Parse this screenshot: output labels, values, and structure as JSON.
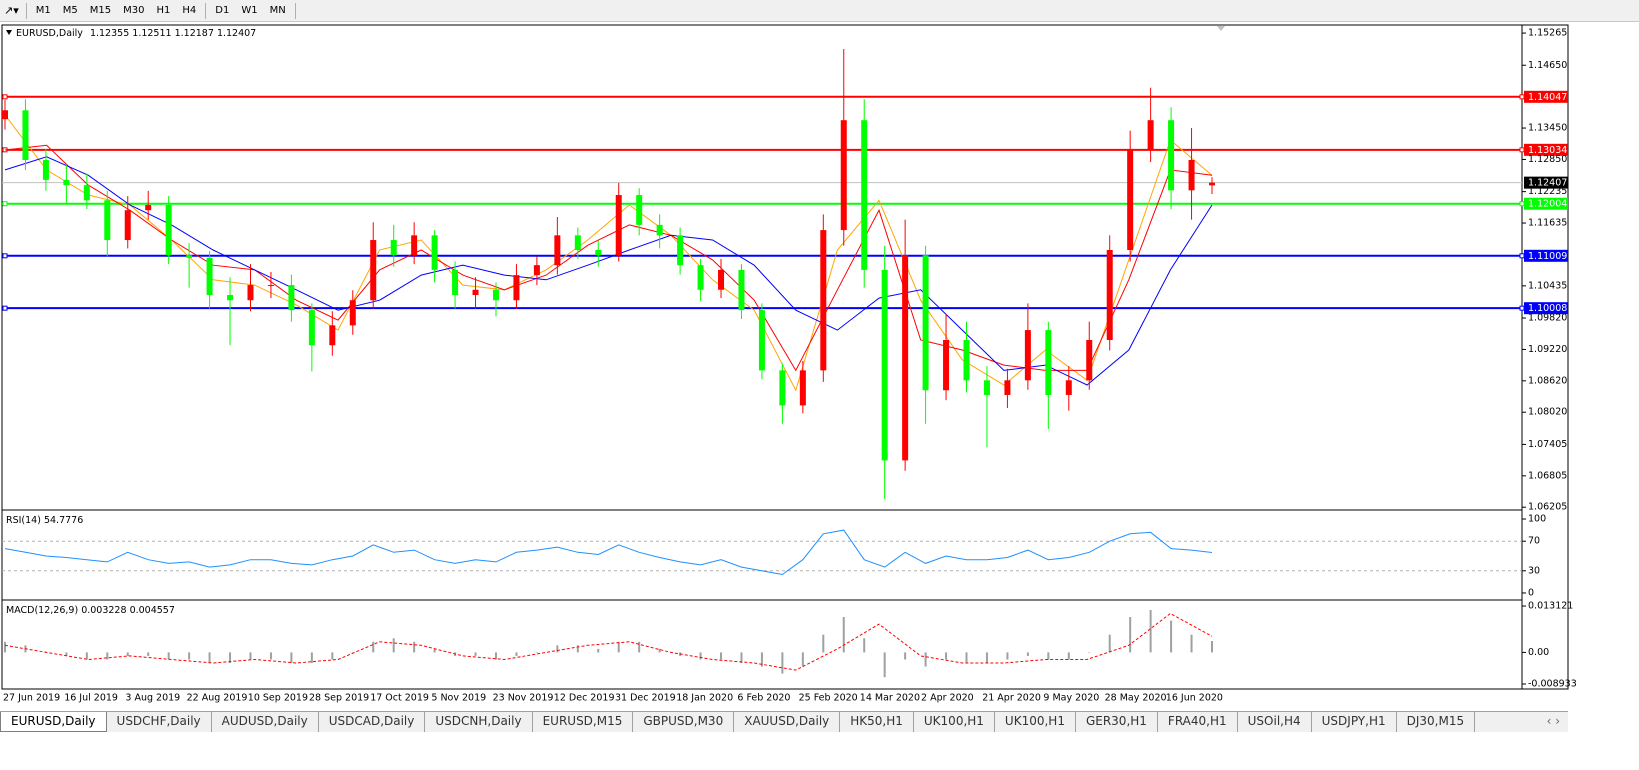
{
  "toolbar": {
    "timeframes": [
      "M1",
      "M5",
      "M15",
      "M30",
      "H1",
      "H4",
      "D1",
      "W1",
      "MN"
    ]
  },
  "chart_data": [
    {
      "type": "candlestick",
      "title": "EURUSD,Daily",
      "up_color": "#ff0000",
      "down_color": "#00ff00",
      "open": [
        1.1362,
        1.1379,
        1.1284,
        1.1246,
        1.1236,
        1.1207,
        1.1131,
        1.1188,
        1.1198,
        1.1102,
        1.1097,
        1.1026,
        1.1016,
        1.1045,
        1.1045,
        1.0997,
        1.093,
        1.0968,
        1.1016,
        1.1131,
        1.1102,
        1.114,
        1.1074,
        1.1026,
        1.1036,
        1.1016,
        1.1064,
        1.1083,
        1.114,
        1.1112,
        1.1102,
        1.1217,
        1.116,
        1.114,
        1.1083,
        1.1036,
        1.1074,
        1.0997,
        1.0882,
        1.0815,
        1.0882,
        1.115,
        1.136,
        1.1074,
        1.071,
        1.1102,
        1.0844,
        1.094,
        1.0863,
        1.0835,
        1.0863,
        1.0959,
        1.0835,
        1.0863,
        1.094,
        1.1112,
        1.1303,
        1.136,
        1.1226,
        1.12355
      ],
      "high": [
        1.1399,
        1.14,
        1.1305,
        1.1275,
        1.1258,
        1.1225,
        1.1215,
        1.1225,
        1.1215,
        1.1125,
        1.111,
        1.106,
        1.1085,
        1.107,
        1.1065,
        1.101,
        1.0995,
        1.1035,
        1.1165,
        1.116,
        1.1165,
        1.115,
        1.109,
        1.106,
        1.105,
        1.1085,
        1.11,
        1.1175,
        1.1155,
        1.113,
        1.124,
        1.123,
        1.118,
        1.1155,
        1.1095,
        1.1095,
        1.1085,
        1.101,
        1.0895,
        1.09,
        1.118,
        1.1496,
        1.14,
        1.112,
        1.117,
        1.112,
        1.099,
        1.0975,
        1.089,
        1.0885,
        1.101,
        1.0975,
        1.089,
        1.0975,
        1.114,
        1.134,
        1.1422,
        1.1385,
        1.1345,
        1.12511
      ],
      "low": [
        1.1342,
        1.1265,
        1.1225,
        1.12,
        1.119,
        1.11,
        1.1115,
        1.117,
        1.1085,
        1.104,
        1.1,
        1.093,
        1.0995,
        1.102,
        1.0975,
        1.088,
        1.091,
        1.095,
        1.1,
        1.108,
        1.1085,
        1.105,
        1.1,
        1.1,
        1.0985,
        1.1,
        1.1045,
        1.1065,
        1.1095,
        1.108,
        1.109,
        1.114,
        1.1115,
        1.1065,
        1.1015,
        1.102,
        1.098,
        1.0865,
        1.078,
        1.08,
        1.086,
        1.112,
        1.104,
        1.0636,
        1.069,
        1.078,
        1.0825,
        1.084,
        1.0735,
        1.081,
        1.0845,
        1.077,
        1.0805,
        1.0845,
        1.092,
        1.109,
        1.128,
        1.119,
        1.117,
        1.12187
      ],
      "close": [
        1.1379,
        1.1284,
        1.1246,
        1.1236,
        1.1207,
        1.1131,
        1.1188,
        1.1198,
        1.1102,
        1.1097,
        1.1026,
        1.1016,
        1.1045,
        1.1045,
        1.0997,
        1.093,
        1.0968,
        1.1016,
        1.1131,
        1.1102,
        1.114,
        1.1074,
        1.1026,
        1.1036,
        1.1016,
        1.1064,
        1.1083,
        1.114,
        1.1112,
        1.1102,
        1.1217,
        1.116,
        1.114,
        1.1083,
        1.1036,
        1.1074,
        1.0997,
        1.0882,
        1.0815,
        1.0882,
        1.115,
        1.136,
        1.1074,
        1.071,
        1.1102,
        1.0844,
        1.094,
        1.0863,
        1.0835,
        1.0863,
        1.0959,
        1.0835,
        1.0863,
        1.094,
        1.1112,
        1.1303,
        1.136,
        1.1226,
        1.1284,
        1.12407
      ],
      "moving_averages": [
        {
          "color": "#ffa500",
          "values": [
            1.137,
            1.1265,
            1.1217,
            1.1198,
            1.1131,
            1.1055,
            1.1045,
            1.1007,
            1.0959,
            1.1112,
            1.1131,
            1.1045,
            1.1036,
            1.1074,
            1.1131,
            1.1198,
            1.114,
            1.1055,
            1.0997,
            1.0844,
            1.1112,
            1.1207,
            1.1016,
            1.0902,
            1.0854,
            1.0921,
            1.0863,
            1.1093,
            1.1322,
            1.1255
          ]
        },
        {
          "color": "#ff0000",
          "values": [
            1.1303,
            1.1312,
            1.1236,
            1.1188,
            1.1131,
            1.1083,
            1.1074,
            1.1016,
            1.0978,
            1.1074,
            1.1112,
            1.1064,
            1.1036,
            1.1064,
            1.1121,
            1.116,
            1.114,
            1.1093,
            1.1016,
            1.0882,
            1.1036,
            1.1188,
            1.094,
            1.0921,
            1.0892,
            1.0882,
            1.0882,
            1.1055,
            1.1265,
            1.1255
          ]
        },
        {
          "color": "#0000ff",
          "values": [
            1.1265,
            1.129,
            1.1255,
            1.1198,
            1.116,
            1.1112,
            1.1074,
            1.1036,
            1.0997,
            1.1016,
            1.1064,
            1.1083,
            1.1064,
            1.1055,
            1.1083,
            1.1112,
            1.114,
            1.1131,
            1.1083,
            1.0997,
            1.0959,
            1.102,
            1.1036,
            1.0959,
            1.0882,
            1.0892,
            1.0854,
            1.0921,
            1.1074,
            1.1198
          ]
        }
      ],
      "levels": [
        {
          "value": 1.14047,
          "color": "#ff0000"
        },
        {
          "value": 1.13034,
          "color": "#ff0000"
        },
        {
          "value": 1.12004,
          "color": "#00ff00"
        },
        {
          "value": 1.11009,
          "color": "#0000ff"
        },
        {
          "value": 1.10008,
          "color": "#0000ff"
        }
      ],
      "ylim": [
        1.0619,
        1.154
      ],
      "yticks": [
        1.15265,
        {
          "value": 1.1465,
          "label": "1.14650"
        },
        {
          "value": 1.1345,
          "label": "1.13450"
        },
        {
          "value": 1.1285,
          "label": "1.12850"
        },
        1.12235,
        1.11635,
        {
          "value": 1.10435,
          "label": "1.10435"
        },
        {
          "value": 1.0982,
          "label": "1.09820"
        },
        {
          "value": 1.0922,
          "label": "1.09220"
        },
        {
          "value": 1.0862,
          "label": "1.08620"
        },
        {
          "value": 1.0802,
          "label": "1.08020"
        },
        1.07405,
        1.06805,
        1.06205
      ],
      "x_labels": [
        "27 Jun 2019",
        "16 Jul 2019",
        "3 Aug 2019",
        "22 Aug 2019",
        "10 Sep 2019",
        "28 Sep 2019",
        "17 Oct 2019",
        "5 Nov 2019",
        "23 Nov 2019",
        "12 Dec 2019",
        "31 Dec 2019",
        "18 Jan 2020",
        "6 Feb 2020",
        "25 Feb 2020",
        "14 Mar 2020",
        "2 Apr 2020",
        "21 Apr 2020",
        "9 May 2020",
        "28 May 2020",
        "16 Jun 2020"
      ]
    },
    {
      "type": "line",
      "title": "RSI(14)",
      "color": "#1e90ff",
      "values": [
        60,
        55,
        50,
        48,
        45,
        42,
        55,
        45,
        40,
        42,
        35,
        38,
        45,
        45,
        40,
        38,
        45,
        50,
        65,
        55,
        58,
        45,
        40,
        45,
        42,
        55,
        58,
        62,
        55,
        52,
        65,
        55,
        48,
        42,
        38,
        45,
        35,
        30,
        25,
        45,
        80,
        85,
        45,
        35,
        55,
        40,
        50,
        45,
        45,
        48,
        58,
        45,
        48,
        55,
        70,
        80,
        82,
        60,
        58,
        54.7776
      ],
      "levels": [
        70,
        30
      ],
      "ylim": [
        -6.8,
        109.5
      ],
      "yticks": [
        100,
        70,
        30,
        0
      ]
    },
    {
      "type": "macd",
      "title": "MACD(12,26,9)",
      "color": "#a0a0a0",
      "signal_color": "#ff0000",
      "values": [
        0.003,
        0.002,
        0,
        -0.001,
        -0.002,
        -0.002,
        -0.001,
        -0.001,
        -0.002,
        -0.002,
        -0.003,
        -0.003,
        -0.002,
        -0.002,
        -0.003,
        -0.003,
        -0.002,
        0,
        0.003,
        0.004,
        0.003,
        0.001,
        -0.001,
        -0.001,
        -0.002,
        -0.001,
        0,
        0.002,
        0.002,
        0.001,
        0.003,
        0.003,
        0.001,
        -0.001,
        -0.002,
        -0.002,
        -0.003,
        -0.004,
        -0.006,
        -0.004,
        0.005,
        0.01,
        0.004,
        -0.007,
        -0.002,
        -0.004,
        -0.002,
        -0.003,
        -0.003,
        -0.002,
        -0.001,
        -0.002,
        -0.002,
        0,
        0.005,
        0.01,
        0.012,
        0.009,
        0.005,
        0.003228
      ],
      "signal": [
        0.002,
        0,
        -0.002,
        -0.001,
        -0.002,
        -0.003,
        -0.002,
        -0.003,
        -0.002,
        0.003,
        0.002,
        -0.001,
        -0.002,
        0,
        0.002,
        0.003,
        0,
        -0.002,
        -0.003,
        -0.005,
        0.001,
        0.008,
        -0.001,
        -0.003,
        -0.003,
        -0.002,
        -0.002,
        0.002,
        0.011,
        0.004557
      ],
      "ylim": [
        -0.01035,
        0.01454
      ],
      "yticks": [
        0.013121,
        {
          "value": 0,
          "label": "0.00"
        },
        -0.008933
      ]
    }
  ],
  "tabs": [
    "EURUSD,Daily",
    "USDCHF,Daily",
    "AUDUSD,Daily",
    "USDCAD,Daily",
    "USDCNH,Daily",
    "EURUSD,M15",
    "GBPUSD,M30",
    "XAUUSD,Daily",
    "HK50,H1",
    "UK100,H1",
    "UK100,H1",
    "GER30,H1",
    "FRA40,H1",
    "USOil,H4",
    "USDJPY,H1",
    "DJ30,M15"
  ]
}
